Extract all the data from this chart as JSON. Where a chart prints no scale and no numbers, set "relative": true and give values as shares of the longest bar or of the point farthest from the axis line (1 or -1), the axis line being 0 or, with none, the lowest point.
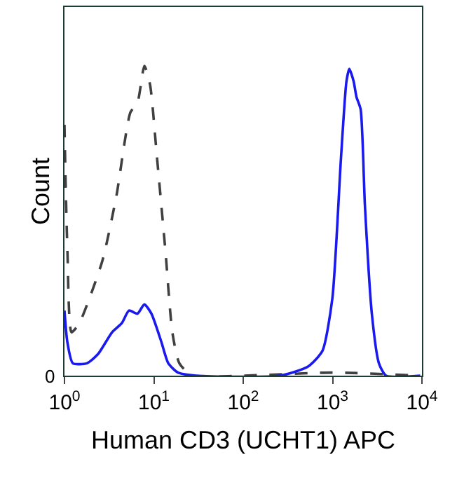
{
  "chart_data": {
    "type": "line",
    "xlabel": "Human CD3 (UCHT1) APC",
    "ylabel": "Count",
    "relative": true,
    "log": "x",
    "xlim": [
      1,
      10000
    ],
    "xticks": [
      {
        "value": 1,
        "label": "10$^{0}$"
      },
      {
        "value": 10,
        "label": "10$^{1}$"
      },
      {
        "value": 100,
        "label": "10$^{2}$"
      },
      {
        "value": 1000,
        "label": "10$^{3}$"
      },
      {
        "value": 10000,
        "label": "10$^{4}$"
      }
    ],
    "annotations": [
      "0"
    ],
    "marker": "none",
    "series": [
      {
        "color": "#404040",
        "line_style": "dashed",
        "x": [
          1.0,
          1.03,
          1.08,
          1.2,
          1.47,
          2.65,
          3.81,
          5.47,
          6.55,
          7.84,
          9.06,
          10.8,
          13.5,
          16.1,
          19.3,
          26.8,
          100,
          1000,
          9560
        ],
        "values": [
          0.81,
          0.62,
          0.4,
          0.14,
          0.17,
          0.37,
          0.58,
          0.85,
          0.88,
          1,
          0.94,
          0.71,
          0.4,
          0.14,
          0.04,
          0,
          0,
          0.01,
          0
        ]
      },
      {
        "color": "#1a1aee",
        "line_style": "solid",
        "x": [
          1.0,
          1.075,
          1.24,
          1.78,
          2.38,
          3.41,
          4.39,
          5.27,
          6.55,
          7.84,
          9.4,
          12.1,
          14.5,
          18.6,
          29.8,
          260,
          535,
          770,
          995,
          1240,
          1430,
          1540,
          1720,
          1850,
          2060,
          2300,
          2750,
          3300,
          3970,
          9560
        ],
        "values": [
          0.21,
          0.11,
          0.04,
          0.04,
          0.07,
          0.14,
          0.17,
          0.21,
          0.2,
          0.23,
          0.2,
          0.11,
          0.04,
          0.01,
          0,
          0,
          0.03,
          0.08,
          0.25,
          0.7,
          0.95,
          0.99,
          0.95,
          0.9,
          0.86,
          0.55,
          0.2,
          0.04,
          0,
          0
        ]
      }
    ]
  }
}
